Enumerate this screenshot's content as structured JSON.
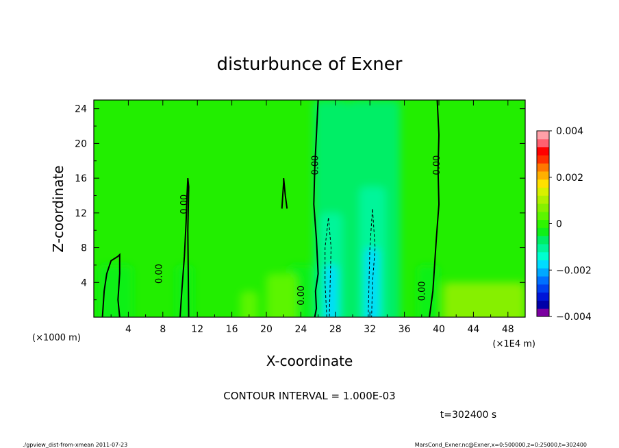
{
  "chart_data": {
    "type": "heatmap",
    "title": "disturbunce of Exner",
    "xlabel": "X-coordinate",
    "ylabel": "Z-coordinate",
    "x_unit_label": "(×1000 m)",
    "x_unit_label_right": "(×1E4 m)",
    "xlim": [
      0,
      50
    ],
    "ylim": [
      0,
      25
    ],
    "x_ticks": [
      4,
      8,
      12,
      16,
      20,
      24,
      28,
      32,
      36,
      40,
      44,
      48
    ],
    "y_ticks": [
      4,
      8,
      12,
      16,
      20,
      24
    ],
    "colorbar": {
      "range": [
        -0.004,
        0.004
      ],
      "tick_labels": [
        "0.004",
        "0.002",
        "0",
        "−0.002",
        "−0.004"
      ],
      "tick_values": [
        0.004,
        0.002,
        0,
        -0.002,
        -0.004
      ],
      "colors": [
        "#7b00a0",
        "#0000a8",
        "#0015d8",
        "#0040f0",
        "#0070ff",
        "#00a8ff",
        "#00dcff",
        "#00ffd0",
        "#00f59a",
        "#00ee66",
        "#10f018",
        "#2ef500",
        "#5cf500",
        "#86f000",
        "#b0f000",
        "#d8f000",
        "#ffe000",
        "#ffb000",
        "#ff7800",
        "#ff3000",
        "#ff0000",
        "#ff6070",
        "#ffa0a8"
      ],
      "background_color": "#22ee00"
    },
    "contour_label": "0.00",
    "contour_interval_text": "CONTOUR INTERVAL = 1.000E-03",
    "time_text": "t=302400 s",
    "footer_left": "./gpview_dist-from-xmean  2011-07-23",
    "footer_right": "MarsCond_Exner.nc@Exner,x=0:500000,z=0:25000,t=302400",
    "features": [
      {
        "x0": 25.5,
        "x1": 29.5,
        "z1": 25,
        "value": -0.0006
      },
      {
        "x0": 26.2,
        "x1": 28.8,
        "z1": 12,
        "value": -0.0012
      },
      {
        "x0": 26.8,
        "x1": 28.2,
        "z1": 6,
        "value": -0.0017
      },
      {
        "x0": 29.5,
        "x1": 35.5,
        "z1": 25,
        "value": -0.0006
      },
      {
        "x0": 30.8,
        "x1": 33.8,
        "z1": 15,
        "value": -0.001
      },
      {
        "x0": 31.5,
        "x1": 33.0,
        "z1": 8,
        "value": -0.0018
      },
      {
        "x0": 0.5,
        "x1": 4.5,
        "z1": 6,
        "value": -0.0005
      },
      {
        "x0": 9.5,
        "x1": 11.5,
        "z1": 6,
        "value": -0.0005
      },
      {
        "x0": 22.5,
        "x1": 25.5,
        "z1": 6,
        "value": -0.0005
      },
      {
        "x0": 37.5,
        "x1": 40.0,
        "z1": 6,
        "value": -0.0005
      },
      {
        "x0": 40.5,
        "x1": 50,
        "z1": 4,
        "value": 0.0006
      },
      {
        "x0": 20.0,
        "x1": 23.5,
        "z1": 5,
        "value": 0.0005
      },
      {
        "x0": 17.0,
        "x1": 19.0,
        "z1": 3,
        "value": 0.0004
      }
    ],
    "zero_contours": [
      {
        "x": [
          26.0,
          25.8,
          25.6,
          25.5,
          25.8,
          26.0,
          25.7,
          25.8,
          25.6
        ],
        "z": [
          25,
          21,
          17,
          13,
          9,
          5,
          3,
          1,
          0
        ]
      },
      {
        "x": [
          39.8,
          40.0,
          39.9,
          40.0,
          39.7,
          39.5,
          39.3,
          38.9
        ],
        "z": [
          25,
          21,
          17,
          13,
          9,
          6,
          3,
          0
        ]
      },
      {
        "x": [
          10.0,
          10.2,
          10.5,
          10.7,
          10.8,
          10.9,
          11.0,
          10.9,
          11.0
        ],
        "z": [
          0,
          3,
          7,
          11,
          14,
          16,
          15,
          10,
          0
        ]
      },
      {
        "x": [
          1.0,
          1.2,
          1.5,
          2.0,
          2.8,
          3.0,
          3.0,
          2.8,
          3.0
        ],
        "z": [
          0,
          3,
          5,
          6.5,
          7.0,
          7.2,
          5,
          2,
          0
        ]
      },
      {
        "x": [
          21.8,
          22.0,
          22.0,
          22.2,
          22.4
        ],
        "z": [
          12.5,
          15.5,
          16.0,
          14.0,
          12.5
        ]
      }
    ],
    "negative_contours": [
      {
        "x": [
          27.0,
          26.8,
          26.8,
          27.2,
          27.5,
          27.4,
          27.3
        ],
        "z": [
          0,
          4,
          8,
          11.5,
          8,
          4,
          0
        ]
      },
      {
        "x": [
          31.8,
          31.9,
          32.0,
          32.3,
          32.6,
          32.3,
          32.2
        ],
        "z": [
          0,
          4,
          8,
          12.5,
          8,
          4,
          0
        ]
      }
    ],
    "contour_labels": [
      {
        "x": 25.7,
        "z": 17.5
      },
      {
        "x": 39.8,
        "z": 17.5
      },
      {
        "x": 10.5,
        "z": 13.0
      },
      {
        "x": 7.6,
        "z": 5.0
      },
      {
        "x": 24.1,
        "z": 2.5
      },
      {
        "x": 38.1,
        "z": 3.0
      }
    ]
  }
}
